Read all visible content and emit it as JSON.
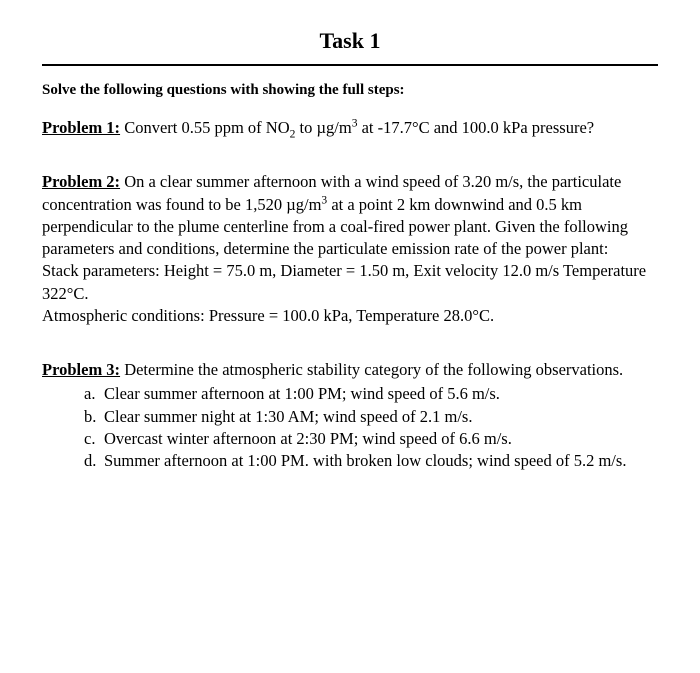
{
  "title": "Task 1",
  "instruction": "Solve the following questions with showing the full steps:",
  "problems": {
    "p1": {
      "label": "Problem 1:",
      "text_before": " Convert 0.55 ppm of NO",
      "sub1": "2",
      "text_mid1": " to µg/m",
      "sup1": "3",
      "text_after": " at -17.7°C and 100.0 kPa pressure?"
    },
    "p2": {
      "label": "Problem 2:",
      "line1_a": " On a clear summer afternoon with a wind speed of 3.20 m/s, the particulate concentration was found to be 1,520 µg/m",
      "sup1": "3",
      "line1_b": " at a point 2 km downwind and 0.5 km perpendicular to the plume centerline from a coal-fired power plant. Given the following parameters and conditions, determine the particulate emission rate of the power plant:",
      "line2": "Stack parameters: Height = 75.0 m, Diameter = 1.50 m, Exit velocity 12.0 m/s Temperature 322°C.",
      "line3": " Atmospheric conditions: Pressure = 100.0 kPa, Temperature 28.0°C."
    },
    "p3": {
      "label": "Problem 3:",
      "intro": " Determine the atmospheric stability category of the following observations.",
      "items": {
        "a": {
          "marker": "a.",
          "text": "Clear summer afternoon at 1:00 PM; wind speed of 5.6 m/s."
        },
        "b": {
          "marker": "b.",
          "text": "Clear summer night at 1:30 AM; wind speed of 2.1 m/s."
        },
        "c": {
          "marker": "c.",
          "text": "Overcast winter afternoon at 2:30 PM; wind speed of 6.6 m/s."
        },
        "d": {
          "marker": "d.",
          "text": "Summer afternoon at 1:00 PM. with broken low clouds; wind speed of 5.2 m/s."
        }
      }
    }
  }
}
